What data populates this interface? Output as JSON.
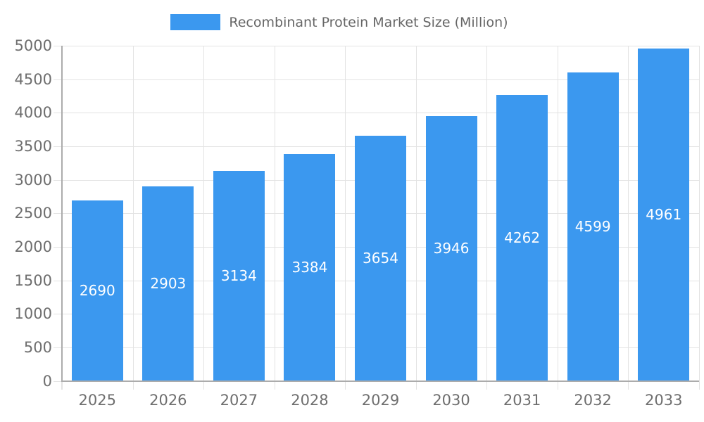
{
  "chart_data": {
    "type": "bar",
    "title": "Recombinant Protein Market Size (Million)",
    "series_name": "Recombinant Protein Market Size (Million)",
    "categories": [
      "2025",
      "2026",
      "2027",
      "2028",
      "2029",
      "2030",
      "2031",
      "2032",
      "2033"
    ],
    "values": [
      2690,
      2903,
      3134,
      3384,
      3654,
      3946,
      4262,
      4599,
      4961
    ],
    "xlabel": "",
    "ylabel": "",
    "ylim": [
      0,
      5000
    ],
    "ytick_step": 500,
    "grid": true,
    "legend_position": "top-center",
    "value_labels": "inside-center"
  },
  "colors": {
    "bar": "#3B98EF",
    "grid": "#E3E3E3",
    "axis": "#ACACAC",
    "tick_text": "#6E6E6E",
    "legend_text": "#666666",
    "value_text": "#FFFFFF",
    "background": "#FFFFFF"
  }
}
